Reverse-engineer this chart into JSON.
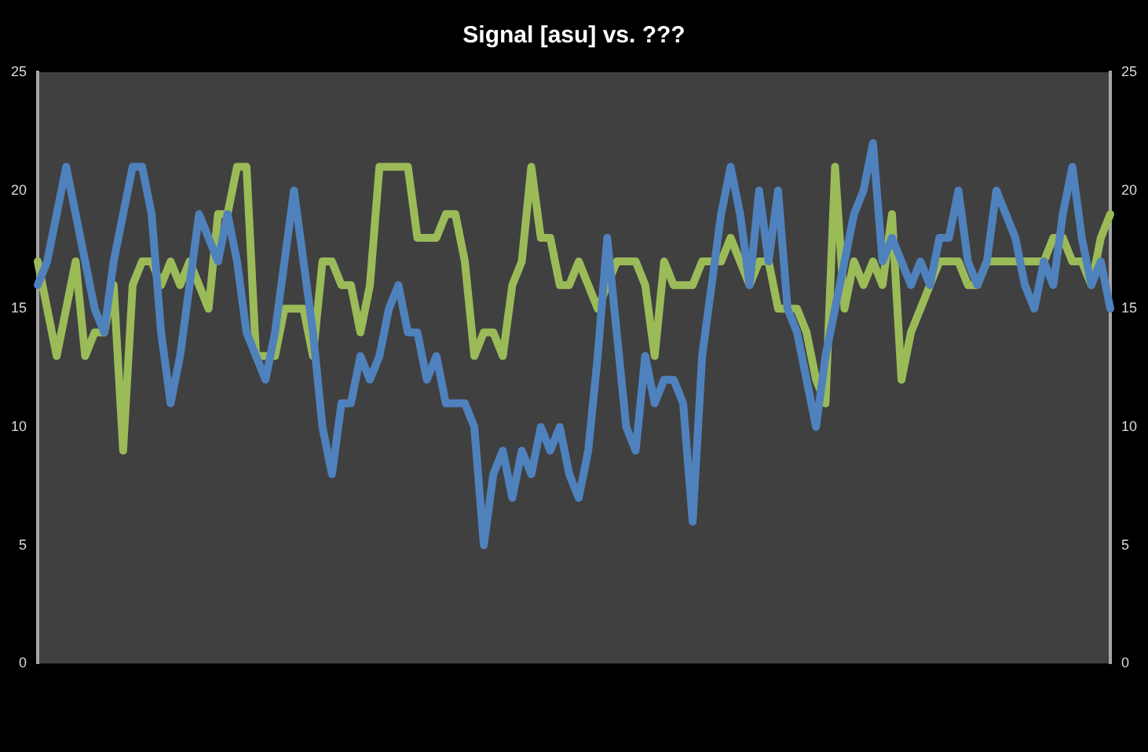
{
  "chart_data": {
    "type": "line",
    "title": "Signal [asu] vs. ???",
    "categories": [
      null,
      null,
      null,
      null,
      null,
      null,
      null,
      null,
      null,
      null,
      null,
      null,
      null,
      null,
      null,
      null,
      null,
      null,
      null,
      null,
      null,
      null,
      null,
      null,
      null,
      null,
      null,
      null,
      null,
      null,
      null,
      null,
      null,
      null,
      null,
      null,
      null,
      null,
      null,
      null,
      null,
      null,
      null,
      null,
      null,
      null,
      null,
      null,
      null,
      null,
      null,
      null,
      null,
      null,
      null,
      null,
      null,
      null,
      null,
      null,
      null,
      null,
      null,
      null,
      null,
      null,
      null,
      null,
      null,
      null,
      null,
      null,
      null,
      null,
      null,
      null,
      null,
      null,
      null,
      null,
      null,
      null,
      null,
      null,
      null,
      null,
      null,
      null,
      null,
      null,
      null,
      null,
      null,
      null,
      null,
      null,
      null,
      null,
      null,
      null,
      null,
      null,
      null,
      null,
      null,
      null,
      null,
      null,
      null,
      null,
      null,
      null,
      null,
      null
    ],
    "series": [
      {
        "color": "#4f81bd",
        "values": [
          16,
          17,
          19,
          21,
          19,
          17,
          15,
          14,
          17,
          19,
          21,
          21,
          19,
          14,
          11,
          13,
          16,
          19,
          18,
          17,
          19,
          17,
          14,
          13,
          12,
          14,
          17,
          20,
          17,
          14,
          10,
          8,
          11,
          11,
          13,
          12,
          13,
          15,
          16,
          14,
          14,
          12,
          13,
          11,
          11,
          11,
          10,
          5,
          8,
          9,
          7,
          9,
          8,
          10,
          9,
          10,
          8,
          7,
          9,
          13,
          18,
          14,
          10,
          9,
          13,
          11,
          12,
          12,
          11,
          6,
          13,
          16,
          19,
          21,
          19,
          16,
          20,
          17,
          20,
          15,
          14,
          12,
          10,
          13,
          15,
          17,
          19,
          20,
          22,
          17,
          18,
          17,
          16,
          17,
          16,
          18,
          18,
          20,
          17,
          16,
          17,
          20,
          19,
          18,
          16,
          15,
          17,
          16,
          19,
          21,
          18,
          16,
          17,
          15
        ]
      },
      {
        "color": "#9bbb59",
        "values": [
          17,
          15,
          13,
          15,
          17,
          13,
          14,
          14,
          16,
          9,
          16,
          17,
          17,
          16,
          17,
          16,
          17,
          16,
          15,
          19,
          19,
          21,
          21,
          13,
          13,
          13,
          15,
          15,
          15,
          13,
          17,
          17,
          16,
          16,
          14,
          16,
          21,
          21,
          21,
          21,
          18,
          18,
          18,
          19,
          19,
          17,
          13,
          14,
          14,
          13,
          16,
          17,
          21,
          18,
          18,
          16,
          16,
          17,
          16,
          15,
          16,
          17,
          17,
          17,
          16,
          13,
          17,
          16,
          16,
          16,
          17,
          17,
          17,
          18,
          17,
          16,
          17,
          17,
          15,
          15,
          15,
          14,
          12,
          11,
          21,
          15,
          17,
          16,
          17,
          16,
          19,
          12,
          14,
          15,
          16,
          17,
          17,
          17,
          16,
          16,
          17,
          17,
          17,
          17,
          17,
          17,
          17,
          18,
          18,
          17,
          17,
          16,
          18,
          19
        ]
      }
    ],
    "ylim": [
      0,
      25
    ],
    "yticks": [
      0,
      5,
      10,
      15,
      20,
      25
    ],
    "y2lim": [
      0,
      25
    ],
    "y2ticks": [
      0,
      5,
      10,
      15,
      20,
      25
    ],
    "grid": false,
    "legend": false,
    "marker": "none",
    "line_style": "solid"
  }
}
